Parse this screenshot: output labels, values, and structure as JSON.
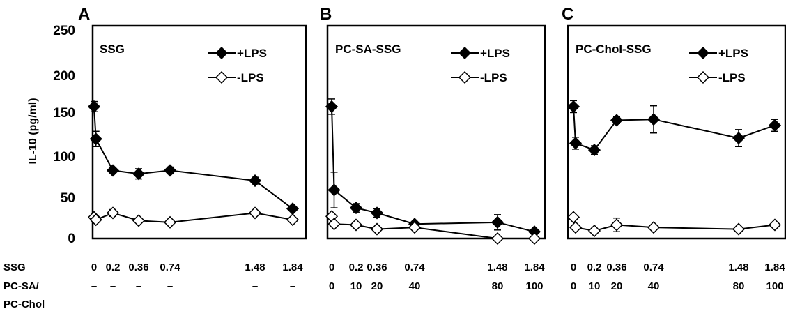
{
  "y_axis": {
    "label": "IL-10 (pg/ml)",
    "ticks": [
      "250",
      "200",
      "150",
      "100",
      "50",
      "0"
    ]
  },
  "dose_table": {
    "row1_label": "SSG",
    "row2_label": "PC-SA/\nPC-Chol"
  },
  "colors": {
    "plus_lps": "#000000",
    "minus_lps": "#ffffff",
    "axis": "#000000"
  },
  "chart_data": [
    {
      "type": "line",
      "panel_letter": "A",
      "panel_label": "SSG",
      "ylim": [
        0,
        250
      ],
      "legend": [
        "+LPS",
        "-LPS"
      ],
      "ssg_labels": [
        "0",
        "0.2",
        "0.36",
        "0.74",
        "1.48",
        "1.84"
      ],
      "carrier_labels": [
        "–",
        "–",
        "–",
        "–",
        "–",
        "–"
      ],
      "series": [
        {
          "name": "+LPS",
          "marker": "filled-diamond",
          "x": [
            0,
            0.02,
            0.2,
            0.36,
            0.74,
            1.48,
            1.84
          ],
          "y": [
            155,
            117,
            80,
            76,
            80,
            68,
            35
          ],
          "err": [
            6,
            9,
            3,
            6,
            4,
            4,
            2
          ]
        },
        {
          "name": "-LPS",
          "marker": "open-diamond",
          "x": [
            0,
            0.02,
            0.2,
            0.36,
            0.74,
            1.48,
            1.84
          ],
          "y": [
            25,
            22,
            30,
            21,
            19,
            30,
            22
          ],
          "err": [
            0,
            3,
            4,
            0,
            0,
            0,
            0
          ]
        }
      ]
    },
    {
      "type": "line",
      "panel_letter": "B",
      "panel_label": "PC-SA-SSG",
      "ylim": [
        0,
        250
      ],
      "legend": [
        "+LPS",
        "-LPS"
      ],
      "ssg_labels": [
        "0",
        "0.2",
        "0.36",
        "0.74",
        "1.48",
        "1.84"
      ],
      "carrier_labels": [
        "0",
        "10",
        "20",
        "40",
        "80",
        "100"
      ],
      "series": [
        {
          "name": "+LPS",
          "marker": "filled-diamond",
          "x": [
            0,
            0.02,
            0.2,
            0.36,
            0.74,
            1.48,
            1.84
          ],
          "y": [
            155,
            57,
            36,
            30,
            17,
            19,
            8
          ],
          "err": [
            9,
            21,
            5,
            5,
            2,
            9,
            2
          ]
        },
        {
          "name": "-LPS",
          "marker": "open-diamond",
          "x": [
            0,
            0.02,
            0.2,
            0.36,
            0.74,
            1.48,
            1.84
          ],
          "y": [
            26,
            17,
            16,
            11,
            13,
            0,
            0
          ],
          "err": [
            0,
            2,
            0,
            0,
            0,
            0,
            0
          ]
        }
      ]
    },
    {
      "type": "line",
      "panel_letter": "C",
      "panel_label": "PC-Chol-SSG",
      "ylim": [
        0,
        250
      ],
      "legend": [
        "+LPS",
        "-LPS"
      ],
      "ssg_labels": [
        "0",
        "0.2",
        "0.36",
        "0.74",
        "1.48",
        "1.84"
      ],
      "carrier_labels": [
        "0",
        "10",
        "20",
        "40",
        "80",
        "100"
      ],
      "series": [
        {
          "name": "+LPS",
          "marker": "filled-diamond",
          "x": [
            0,
            0.02,
            0.2,
            0.36,
            0.74,
            1.48,
            1.84
          ],
          "y": [
            155,
            112,
            104,
            139,
            140,
            118,
            133
          ],
          "err": [
            7,
            7,
            5,
            4,
            16,
            10,
            7
          ]
        },
        {
          "name": "-LPS",
          "marker": "open-diamond",
          "x": [
            0,
            0.02,
            0.2,
            0.36,
            0.74,
            1.48,
            1.84
          ],
          "y": [
            25,
            13,
            9,
            16,
            13,
            11,
            16
          ],
          "err": [
            0,
            2,
            3,
            8,
            0,
            0,
            0
          ]
        }
      ]
    }
  ]
}
